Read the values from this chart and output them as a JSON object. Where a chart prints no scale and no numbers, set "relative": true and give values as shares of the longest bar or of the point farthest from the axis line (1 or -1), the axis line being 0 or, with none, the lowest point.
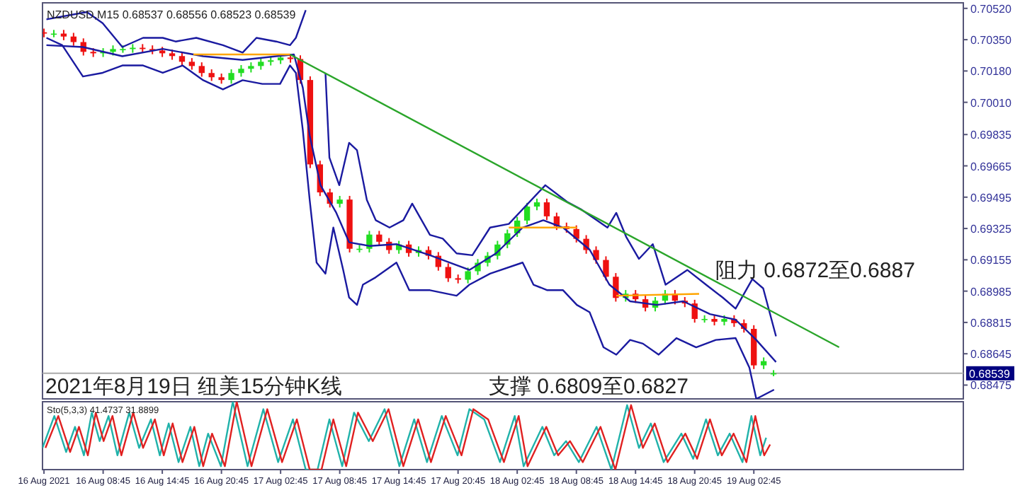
{
  "chart_data": [
    {
      "type": "candlestick",
      "title": "NZDUSD,M15  0.68537 0.68556 0.68523 0.68539",
      "colors": [
        "#ee1111",
        "#22dd22",
        "#ee1111",
        "#ee1111",
        "#ee1111",
        "#ee1111",
        "#22dd22",
        "#22dd22",
        "#22dd22",
        "#22dd22",
        "#ee1111",
        "#ee1111",
        "#ee1111",
        "#ee1111",
        "#ee1111",
        "#ee1111",
        "#ee1111",
        "#ee1111",
        "#ee1111",
        "#22dd22",
        "#22dd22",
        "#22dd22",
        "#22dd22",
        "#22dd22",
        "#22dd22",
        "#ee1111",
        "#ee1111",
        "#ee1111",
        "#ee1111",
        "#ee1111",
        "#22dd22",
        "#ee1111",
        "#22dd22",
        "#22dd22",
        "#ee1111",
        "#ee1111",
        "#22dd22",
        "#ee1111",
        "#22dd22",
        "#ee1111",
        "#ee1111",
        "#ee1111",
        "#ee1111",
        "#22dd22",
        "#22dd22",
        "#22dd22",
        "#22dd22",
        "#22dd22",
        "#22dd22",
        "#22dd22",
        "#22dd22",
        "#ee1111",
        "#ee1111",
        "#ee1111",
        "#ee1111",
        "#ee1111",
        "#ee1111",
        "#ee1111",
        "#ee1111",
        "#22dd22",
        "#ee1111",
        "#ee1111",
        "#22dd22",
        "#22dd22",
        "#ee1111",
        "#ee1111",
        "#ee1111",
        "#22dd22",
        "#ee1111",
        "#22dd22",
        "#ee1111",
        "#ee1111",
        "#ee1111",
        "#22dd22",
        "#22dd22"
      ],
      "x": [
        "2021-08-16T02:45",
        "2021-08-16T03:45",
        "2021-08-16T04:45",
        "2021-08-16T05:45",
        "2021-08-16T06:45",
        "2021-08-16T07:45",
        "2021-08-16T08:45",
        "2021-08-16T09:45",
        "2021-08-16T10:45",
        "2021-08-16T11:45",
        "2021-08-16T12:45",
        "2021-08-16T13:45",
        "2021-08-16T14:45",
        "2021-08-16T15:45",
        "2021-08-16T16:45",
        "2021-08-16T17:45",
        "2021-08-16T18:45",
        "2021-08-16T19:45",
        "2021-08-16T20:45",
        "2021-08-16T21:45",
        "2021-08-16T22:45",
        "2021-08-16T23:45",
        "2021-08-17T00:45",
        "2021-08-17T01:45",
        "2021-08-17T02:45",
        "2021-08-17T03:45",
        "2021-08-17T04:45",
        "2021-08-17T05:45",
        "2021-08-17T06:45",
        "2021-08-17T07:45",
        "2021-08-17T08:45",
        "2021-08-17T09:45",
        "2021-08-17T10:45",
        "2021-08-17T11:45",
        "2021-08-17T12:45",
        "2021-08-17T13:45",
        "2021-08-17T14:45",
        "2021-08-17T15:45",
        "2021-08-17T16:45",
        "2021-08-17T17:45",
        "2021-08-17T18:45",
        "2021-08-17T19:45",
        "2021-08-17T20:45",
        "2021-08-17T21:45",
        "2021-08-17T22:45",
        "2021-08-17T23:45",
        "2021-08-18T00:45",
        "2021-08-18T01:45",
        "2021-08-18T02:45",
        "2021-08-18T03:45",
        "2021-08-18T04:45",
        "2021-08-18T05:45",
        "2021-08-18T06:45",
        "2021-08-18T07:45",
        "2021-08-18T08:45",
        "2021-08-18T09:45",
        "2021-08-18T10:45",
        "2021-08-18T11:45",
        "2021-08-18T12:45",
        "2021-08-18T13:45",
        "2021-08-18T14:45",
        "2021-08-18T15:45",
        "2021-08-18T16:45",
        "2021-08-18T17:45",
        "2021-08-18T18:45",
        "2021-08-18T19:45",
        "2021-08-18T20:45",
        "2021-08-18T21:45",
        "2021-08-18T22:45",
        "2021-08-18T23:45",
        "2021-08-19T00:45",
        "2021-08-19T01:45",
        "2021-08-19T02:45",
        "2021-08-19T03:45",
        "2021-08-19T04:45"
      ],
      "ohlc": [
        [
          0.7039,
          0.7041,
          0.70363,
          0.70383
        ],
        [
          0.70383,
          0.70403,
          0.70363,
          0.70383
        ],
        [
          0.70383,
          0.70403,
          0.70347,
          0.70367
        ],
        [
          0.70367,
          0.70387,
          0.70317,
          0.70337
        ],
        [
          0.70337,
          0.70357,
          0.70264,
          0.70284
        ],
        [
          0.70284,
          0.70304,
          0.70256,
          0.70276
        ],
        [
          0.70276,
          0.70304,
          0.70256,
          0.70284
        ],
        [
          0.70284,
          0.70319,
          0.70264,
          0.70299
        ],
        [
          0.70299,
          0.70319,
          0.70279,
          0.70299
        ],
        [
          0.70299,
          0.70326,
          0.70279,
          0.70306
        ],
        [
          0.70306,
          0.70326,
          0.70279,
          0.70299
        ],
        [
          0.70299,
          0.70319,
          0.70271,
          0.70291
        ],
        [
          0.70291,
          0.70311,
          0.70256,
          0.70276
        ],
        [
          0.70276,
          0.70296,
          0.70241,
          0.70261
        ],
        [
          0.70261,
          0.70281,
          0.7021,
          0.7023
        ],
        [
          0.7023,
          0.7025,
          0.70187,
          0.70207
        ],
        [
          0.70207,
          0.70227,
          0.70149,
          0.70169
        ],
        [
          0.70169,
          0.70189,
          0.70126,
          0.70146
        ],
        [
          0.70146,
          0.70166,
          0.70111,
          0.70131
        ],
        [
          0.70131,
          0.70189,
          0.70111,
          0.70169
        ],
        [
          0.70169,
          0.70212,
          0.70149,
          0.70192
        ],
        [
          0.70192,
          0.70227,
          0.70172,
          0.70207
        ],
        [
          0.70207,
          0.7025,
          0.70187,
          0.7023
        ],
        [
          0.7023,
          0.70258,
          0.7021,
          0.70238
        ],
        [
          0.70238,
          0.70273,
          0.70218,
          0.70253
        ],
        [
          0.70253,
          0.70273,
          0.70225,
          0.70245
        ],
        [
          0.70245,
          0.70265,
          0.70111,
          0.70131
        ],
        [
          0.70131,
          0.70151,
          0.69653,
          0.69673
        ],
        [
          0.69673,
          0.69693,
          0.69501,
          0.69521
        ],
        [
          0.69521,
          0.69541,
          0.69439,
          0.69459
        ],
        [
          0.69459,
          0.69502,
          0.69439,
          0.69482
        ],
        [
          0.69482,
          0.69502,
          0.69195,
          0.69215
        ],
        [
          0.69215,
          0.69235,
          0.69195,
          0.69215
        ],
        [
          0.69215,
          0.69312,
          0.69195,
          0.69292
        ],
        [
          0.69292,
          0.69312,
          0.69233,
          0.69253
        ],
        [
          0.69253,
          0.69273,
          0.69188,
          0.69208
        ],
        [
          0.69208,
          0.69258,
          0.69188,
          0.69238
        ],
        [
          0.69238,
          0.69258,
          0.69172,
          0.69192
        ],
        [
          0.69192,
          0.69228,
          0.69172,
          0.69208
        ],
        [
          0.69208,
          0.69228,
          0.69157,
          0.69177
        ],
        [
          0.69177,
          0.69197,
          0.69096,
          0.69116
        ],
        [
          0.69116,
          0.69136,
          0.69035,
          0.69055
        ],
        [
          0.69055,
          0.69075,
          0.69027,
          0.69047
        ],
        [
          0.69047,
          0.69113,
          0.69027,
          0.69093
        ],
        [
          0.69093,
          0.69159,
          0.69073,
          0.69139
        ],
        [
          0.69139,
          0.69197,
          0.69119,
          0.69177
        ],
        [
          0.69177,
          0.69258,
          0.69157,
          0.69238
        ],
        [
          0.69238,
          0.69319,
          0.69218,
          0.69299
        ],
        [
          0.69299,
          0.69388,
          0.69279,
          0.69368
        ],
        [
          0.69368,
          0.69464,
          0.69348,
          0.69444
        ],
        [
          0.69444,
          0.69487,
          0.69424,
          0.69467
        ],
        [
          0.69467,
          0.69487,
          0.69371,
          0.69391
        ],
        [
          0.69391,
          0.69411,
          0.69317,
          0.69337
        ],
        [
          0.69337,
          0.69357,
          0.69302,
          0.69322
        ],
        [
          0.69322,
          0.69342,
          0.69249,
          0.69269
        ],
        [
          0.69269,
          0.69289,
          0.69188,
          0.69208
        ],
        [
          0.69208,
          0.69228,
          0.69134,
          0.69154
        ],
        [
          0.69154,
          0.69174,
          0.69043,
          0.69063
        ],
        [
          0.69063,
          0.69083,
          0.68928,
          0.68948
        ],
        [
          0.68948,
          0.68991,
          0.68928,
          0.68971
        ],
        [
          0.68971,
          0.68991,
          0.68921,
          0.68941
        ],
        [
          0.68941,
          0.68961,
          0.68875,
          0.68895
        ],
        [
          0.68895,
          0.68953,
          0.68875,
          0.68933
        ],
        [
          0.68933,
          0.68991,
          0.68913,
          0.68971
        ],
        [
          0.68971,
          0.68991,
          0.68913,
          0.68933
        ],
        [
          0.68933,
          0.68953,
          0.68898,
          0.68918
        ],
        [
          0.68918,
          0.68938,
          0.68814,
          0.68834
        ],
        [
          0.68834,
          0.68854,
          0.68814,
          0.68834
        ],
        [
          0.68834,
          0.68854,
          0.68799,
          0.68819
        ],
        [
          0.68819,
          0.68854,
          0.68799,
          0.68834
        ],
        [
          0.68834,
          0.68854,
          0.68791,
          0.68811
        ],
        [
          0.68811,
          0.68831,
          0.6876,
          0.6878
        ],
        [
          0.6878,
          0.688,
          0.68562,
          0.68582
        ],
        [
          0.68582,
          0.68625,
          0.68562,
          0.68605
        ],
        [
          0.68537,
          0.68556,
          0.68523,
          0.68539
        ]
      ],
      "series": [
        {
          "type": "line",
          "color": "#1a1aa0",
          "x": [
            "2021-08-16T03:00",
            "2021-08-16T07:06",
            "2021-08-16T08:42",
            "2021-08-16T10:42",
            "2021-08-16T12:48",
            "2021-08-16T14:48",
            "2021-08-16T16:06",
            "2021-08-16T18:12",
            "2021-08-16T20:54",
            "2021-08-16T22:54",
            "2021-08-17T00:18",
            "2021-08-17T02:18",
            "2021-08-17T03:42",
            "2021-08-17T04:18",
            "2021-08-17T05:18",
            "2021-08-17T06:24",
            "2021-08-17T07:18",
            "2021-08-17T07:42",
            "2021-08-17T08:42",
            "2021-08-17T09:42",
            "2021-08-17T10:30",
            "2021-08-17T11:30",
            "2021-08-17T12:24",
            "2021-08-17T13:48",
            "2021-08-17T15:12",
            "2021-08-17T16:06",
            "2021-08-17T17:54",
            "2021-08-17T19:12",
            "2021-08-17T20:36",
            "2021-08-17T22:12",
            "2021-08-18T00:00",
            "2021-08-18T01:54",
            "2021-08-18T05:36",
            "2021-08-18T07:48",
            "2021-08-18T09:12",
            "2021-08-18T11:54",
            "2021-08-18T12:48",
            "2021-08-18T13:48",
            "2021-08-18T15:06",
            "2021-08-18T16:30",
            "2021-08-18T17:48",
            "2021-08-18T20:00",
            "2021-08-18T21:54",
            "2021-08-18T23:36",
            "2021-08-19T00:54",
            "2021-08-19T02:36",
            "2021-08-19T03:42",
            "2021-08-19T05:00"
          ],
          "values": [
            0.7046,
            0.705,
            0.7044,
            0.7031,
            0.7036,
            0.7036,
            0.7034,
            0.7036,
            0.7032,
            0.7028,
            0.7036,
            0.7034,
            0.7032,
            0.7036,
            0.7051,
            null,
            0.7017,
            0.6971,
            0.6956,
            0.6979,
            0.6975,
            0.6948,
            0.6937,
            0.6933,
            0.6937,
            0.6946,
            0.6929,
            0.6927,
            0.6919,
            0.6918,
            0.6933,
            0.6935,
            0.6956,
            0.6947,
            0.6943,
            0.6933,
            0.6941,
            0.6928,
            0.6916,
            0.6924,
            0.6902,
            0.691,
            0.6902,
            0.6895,
            0.6889,
            0.6905,
            0.69,
            0.6874
          ]
        },
        {
          "type": "line",
          "color": "#1a1aa0",
          "x": [
            "2021-08-16T03:00",
            "2021-08-16T06:42",
            "2021-08-16T10:42",
            "2021-08-16T14:48",
            "2021-08-16T18:54",
            "2021-08-16T22:54",
            "2021-08-17T02:18",
            "2021-08-17T04:06",
            "2021-08-17T05:00",
            "2021-08-17T05:42",
            "2021-08-17T06:48",
            "2021-08-17T08:24",
            "2021-08-17T09:42",
            "2021-08-17T11:48",
            "2021-08-17T14:30",
            "2021-08-17T17:54",
            "2021-08-17T21:54",
            "2021-08-18T00:36",
            "2021-08-18T03:18",
            "2021-08-18T05:24",
            "2021-08-18T07:24",
            "2021-08-18T10:06",
            "2021-08-18T12:06",
            "2021-08-18T14:12",
            "2021-08-18T16:54",
            "2021-08-18T19:36",
            "2021-08-18T22:18",
            "2021-08-19T00:54",
            "2021-08-19T03:00",
            "2021-08-19T05:00"
          ],
          "values": [
            0.7032,
            0.7031,
            0.7026,
            0.703,
            0.7026,
            0.7024,
            0.7026,
            0.7027,
            0.7009,
            0.6983,
            0.6956,
            0.6941,
            0.6925,
            0.6923,
            0.6924,
            0.6918,
            0.691,
            0.6919,
            0.6933,
            0.6937,
            0.6933,
            0.6921,
            0.6902,
            0.6893,
            0.6891,
            0.6893,
            0.6886,
            0.6883,
            0.6872,
            0.686
          ]
        },
        {
          "type": "line",
          "color": "#1a1aa0",
          "x": [
            "2021-08-16T03:00",
            "2021-08-16T04:36",
            "2021-08-16T06:42",
            "2021-08-16T08:42",
            "2021-08-16T10:42",
            "2021-08-16T12:48",
            "2021-08-16T14:48",
            "2021-08-16T16:48",
            "2021-08-16T18:54",
            "2021-08-16T20:54",
            "2021-08-16T22:54",
            "2021-08-17T00:54",
            "2021-08-17T02:42",
            "2021-08-17T03:42",
            "2021-08-17T04:18",
            "2021-08-17T05:00",
            "2021-08-17T05:42",
            "2021-08-17T06:24",
            "2021-08-17T07:18",
            "2021-08-17T08:06",
            "2021-08-17T09:06",
            "2021-08-17T09:42",
            "2021-08-17T10:30",
            "2021-08-17T11:06",
            "2021-08-17T12:24",
            "2021-08-17T14:30",
            "2021-08-17T15:48",
            "2021-08-17T17:54",
            "2021-08-17T20:36",
            "2021-08-17T21:54",
            "2021-08-18T00:00",
            "2021-08-18T03:18",
            "2021-08-18T04:24",
            "2021-08-18T05:48",
            "2021-08-18T07:24",
            "2021-08-18T08:48",
            "2021-08-18T10:06",
            "2021-08-18T11:30",
            "2021-08-18T12:48",
            "2021-08-18T14:12",
            "2021-08-18T15:30",
            "2021-08-18T17:06",
            "2021-08-18T18:54",
            "2021-08-18T20:54",
            "2021-08-18T22:54",
            "2021-08-19T00:54",
            "2021-08-19T02:18",
            "2021-08-19T03:00",
            "2021-08-19T04:48"
          ],
          "values": [
            0.7036,
            0.7032,
            0.7015,
            0.7017,
            0.7021,
            0.7021,
            0.7017,
            0.7021,
            0.7013,
            0.7008,
            0.7013,
            0.7011,
            0.7011,
            0.7021,
            0.7017,
            0.6986,
            0.6948,
            0.6914,
            0.6908,
            0.6933,
            0.691,
            0.6895,
            0.6891,
            0.6902,
            0.6906,
            0.6914,
            0.6899,
            0.6899,
            0.6896,
            0.6902,
            0.6908,
            0.6914,
            0.6902,
            0.6899,
            0.6899,
            0.6891,
            0.6887,
            0.6868,
            0.6864,
            0.6872,
            0.687,
            0.6864,
            0.6873,
            0.6868,
            0.6872,
            0.6873,
            0.6857,
            0.684,
            0.6845
          ]
        },
        {
          "type": "line",
          "color": "#2aa52a",
          "x": [
            "2021-08-17T03:42",
            "2021-08-19T11:24"
          ],
          "values": [
            0.7027,
            0.6868
          ]
        },
        {
          "type": "line",
          "color": "#ffa500",
          "x": [
            "2021-08-16T17:54",
            "2021-08-17T03:42"
          ],
          "values": [
            0.7027,
            0.7027
          ]
        },
        {
          "type": "line",
          "color": "#ffa500",
          "x": [
            "2021-08-18T01:54",
            "2021-08-18T08:48"
          ],
          "values": [
            0.6933,
            0.6933
          ]
        },
        {
          "type": "line",
          "color": "#ffa500",
          "x": [
            "2021-08-18T12:48",
            "2021-08-18T21:12"
          ],
          "values": [
            0.6896,
            0.6897
          ]
        }
      ],
      "xlim": [
        "2021-08-16T02:36",
        "2021-08-20T00:00"
      ],
      "ylim": [
        0.684,
        0.7055
      ],
      "yticks": [
        {
          "value": 0.7052,
          "label": "0.70520"
        },
        {
          "value": 0.7035,
          "label": "0.70350"
        },
        {
          "value": 0.7018,
          "label": "0.70180"
        },
        {
          "value": 0.7001,
          "label": "0.70010"
        },
        {
          "value": 0.69835,
          "label": "0.69835"
        },
        {
          "value": 0.69665,
          "label": "0.69665"
        },
        {
          "value": 0.69495,
          "label": "0.69495"
        },
        {
          "value": 0.69325,
          "label": "0.69325"
        },
        {
          "value": 0.69155,
          "label": "0.69155"
        },
        {
          "value": 0.68985,
          "label": "0.68985"
        },
        {
          "value": 0.68815,
          "label": "0.68815"
        },
        {
          "value": 0.68645,
          "label": "0.68645"
        },
        {
          "value": 0.68475,
          "label": "0.68475"
        }
      ],
      "ref_lines": [
        {
          "axis": "y",
          "value": 0.68539,
          "label": "0.68539",
          "color": "#aaaaaa"
        }
      ],
      "annotations": [
        "2021年8月19日 纽美15分钟K线",
        "支撑 0.6809至0.6827",
        "阻力 0.6872至0.6887"
      ],
      "tick_labels": "y"
    },
    {
      "type": "line",
      "title": "Sto(5,3,3) 41.4737 31.8899",
      "relative": true,
      "xlim": [
        "2021-08-16T02:36",
        "2021-08-20T00:00"
      ],
      "xticks": [
        {
          "value": "2021-08-16T02:45",
          "label": "16 Aug 2021"
        },
        {
          "value": "2021-08-16T08:45",
          "label": "16 Aug 08:45"
        },
        {
          "value": "2021-08-16T14:45",
          "label": "16 Aug 14:45"
        },
        {
          "value": "2021-08-16T20:45",
          "label": "16 Aug 20:45"
        },
        {
          "value": "2021-08-17T02:45",
          "label": "17 Aug 02:45"
        },
        {
          "value": "2021-08-17T08:45",
          "label": "17 Aug 08:45"
        },
        {
          "value": "2021-08-17T14:45",
          "label": "17 Aug 14:45"
        },
        {
          "value": "2021-08-17T20:45",
          "label": "17 Aug 20:45"
        },
        {
          "value": "2021-08-18T02:45",
          "label": "18 Aug 02:45"
        },
        {
          "value": "2021-08-18T08:45",
          "label": "18 Aug 08:45"
        },
        {
          "value": "2021-08-18T14:45",
          "label": "18 Aug 14:45"
        },
        {
          "value": "2021-08-18T20:45",
          "label": "18 Aug 20:45"
        },
        {
          "value": "2021-08-19T02:45",
          "label": "19 Aug 02:45"
        }
      ],
      "series": [
        {
          "color": "#20b2aa",
          "x": [
            "2021-08-16T02:36",
            "2021-08-16T03:48",
            "2021-08-16T05:00",
            "2021-08-16T05:54",
            "2021-08-16T06:48",
            "2021-08-16T07:36",
            "2021-08-16T08:24",
            "2021-08-16T09:18",
            "2021-08-16T10:12",
            "2021-08-16T11:24",
            "2021-08-16T12:24",
            "2021-08-16T13:36",
            "2021-08-16T14:30",
            "2021-08-16T15:24",
            "2021-08-16T16:24",
            "2021-08-16T17:36",
            "2021-08-16T18:30",
            "2021-08-16T19:24",
            "2021-08-16T20:42",
            "2021-08-16T21:54",
            "2021-08-16T23:24",
            "2021-08-17T01:00",
            "2021-08-17T02:30",
            "2021-08-17T04:00",
            "2021-08-17T05:18",
            "2021-08-17T06:30",
            "2021-08-17T07:42",
            "2021-08-17T09:00",
            "2021-08-17T10:12",
            "2021-08-17T11:42",
            "2021-08-17T13:18",
            "2021-08-17T14:48",
            "2021-08-17T16:18",
            "2021-08-17T17:36",
            "2021-08-17T19:06",
            "2021-08-17T20:42",
            "2021-08-17T21:54",
            "2021-08-17T23:24",
            "2021-08-18T01:00",
            "2021-08-18T02:30",
            "2021-08-18T03:24",
            "2021-08-18T05:18",
            "2021-08-18T06:30",
            "2021-08-18T07:42",
            "2021-08-18T09:00",
            "2021-08-18T10:48",
            "2021-08-18T12:18",
            "2021-08-18T13:54",
            "2021-08-18T15:06",
            "2021-08-18T16:18",
            "2021-08-18T17:36",
            "2021-08-18T19:24",
            "2021-08-18T20:36",
            "2021-08-18T21:54",
            "2021-08-18T23:06",
            "2021-08-19T00:18",
            "2021-08-19T01:36",
            "2021-08-19T02:30",
            "2021-08-19T03:24",
            "2021-08-19T04:00"
          ],
          "values": [
            0.32,
            0.79,
            0.26,
            0.63,
            0.21,
            0.84,
            0.42,
            0.79,
            0.21,
            0.84,
            0.32,
            0.74,
            0.21,
            0.68,
            0.11,
            0.63,
            0.05,
            0.53,
            0.05,
            1.0,
            0.05,
            0.89,
            0.11,
            0.74,
            0,
            0,
            0.74,
            0.05,
            0.84,
            0.42,
            0.89,
            0.05,
            0.74,
            0.11,
            0.79,
            0.21,
            0.89,
            0.74,
            0.11,
            0.79,
            0.05,
            0.63,
            0.21,
            0.42,
            0.11,
            0.63,
            0,
            0.95,
            0.32,
            0.68,
            0.11,
            0.53,
            0.16,
            0.74,
            0.21,
            0.53,
            0.11,
            0.79,
            0.21,
            0.47
          ]
        },
        {
          "color": "#e02020",
          "x": [
            "2021-08-16T02:54",
            "2021-08-16T04:12",
            "2021-08-16T05:24",
            "2021-08-16T06:18",
            "2021-08-16T07:12",
            "2021-08-16T08:00",
            "2021-08-16T08:48",
            "2021-08-16T09:42",
            "2021-08-16T10:36",
            "2021-08-16T11:48",
            "2021-08-16T12:48",
            "2021-08-16T14:00",
            "2021-08-16T14:54",
            "2021-08-16T15:48",
            "2021-08-16T16:48",
            "2021-08-16T18:00",
            "2021-08-16T18:54",
            "2021-08-16T19:48",
            "2021-08-16T21:06",
            "2021-08-16T22:18",
            "2021-08-16T23:48",
            "2021-08-17T01:24",
            "2021-08-17T02:54",
            "2021-08-17T04:24",
            "2021-08-17T05:42",
            "2021-08-17T06:54",
            "2021-08-17T08:06",
            "2021-08-17T09:24",
            "2021-08-17T10:36",
            "2021-08-17T12:06",
            "2021-08-17T13:42",
            "2021-08-17T15:12",
            "2021-08-17T16:42",
            "2021-08-17T18:00",
            "2021-08-17T19:30",
            "2021-08-17T21:06",
            "2021-08-17T22:18",
            "2021-08-17T23:48",
            "2021-08-18T01:24",
            "2021-08-18T02:54",
            "2021-08-18T03:48",
            "2021-08-18T05:42",
            "2021-08-18T06:54",
            "2021-08-18T08:06",
            "2021-08-18T09:24",
            "2021-08-18T11:12",
            "2021-08-18T12:42",
            "2021-08-18T14:18",
            "2021-08-18T15:30",
            "2021-08-18T16:42",
            "2021-08-18T18:00",
            "2021-08-18T19:48",
            "2021-08-18T21:00",
            "2021-08-18T22:18",
            "2021-08-18T23:30",
            "2021-08-19T00:42",
            "2021-08-19T02:00",
            "2021-08-19T02:54",
            "2021-08-19T03:48",
            "2021-08-19T04:24"
          ],
          "values": [
            0.32,
            0.79,
            0.26,
            0.63,
            0.21,
            0.84,
            0.42,
            0.79,
            0.21,
            0.84,
            0.32,
            0.74,
            0.21,
            0.68,
            0.11,
            0.63,
            0.05,
            0.53,
            0.05,
            1.0,
            0.05,
            0.89,
            0.11,
            0.74,
            0,
            0,
            0.74,
            0.05,
            0.84,
            0.42,
            0.89,
            0.05,
            0.74,
            0.11,
            0.79,
            0.21,
            0.89,
            0.74,
            0.11,
            0.79,
            0.05,
            0.63,
            0.21,
            0.42,
            0.11,
            0.63,
            0,
            0.95,
            0.32,
            0.68,
            0.11,
            0.53,
            0.16,
            0.74,
            0.21,
            0.53,
            0.11,
            0.79,
            0.21,
            0.37
          ]
        }
      ],
      "tick_labels": "x"
    }
  ]
}
